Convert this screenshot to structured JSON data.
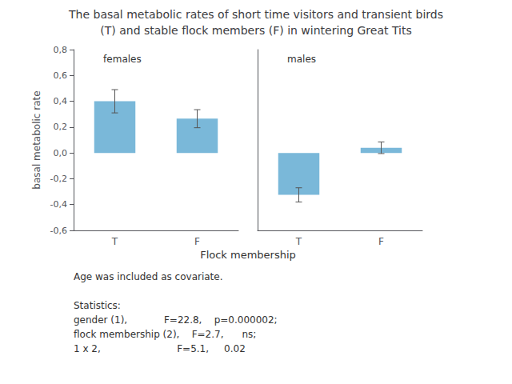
{
  "title": "The basal metabolic rates of short time visitors and transient birds",
  "subtitle": "(T) and stable flock members (F) in wintering Great Tits",
  "xlabel": "Flock membership",
  "annotations": [
    "Age was included as covariate.",
    "Statistics:",
    "gender (1),            F=22.8,    p=0.000002;",
    "flock membership (2),    F=2.7,      ns;",
    "1 x 2,                         F=5.1,     0.02"
  ],
  "chart_data": [
    {
      "type": "bar",
      "label": "females",
      "ylabel": "basal metabolic rate",
      "categories": [
        "T",
        "F"
      ],
      "values": [
        0.4,
        0.265
      ],
      "yerr": [
        0.09,
        0.07
      ],
      "color": "#7ab8d9",
      "ylim": [
        -0.6,
        0.8
      ],
      "yticks": [
        {
          "value": -0.6,
          "label": "-0,6"
        },
        {
          "value": -0.4,
          "label": "-0,4"
        },
        {
          "value": -0.2,
          "label": "-0,2"
        },
        {
          "value": 0.0,
          "label": "0,0"
        },
        {
          "value": 0.2,
          "label": "0,2"
        },
        {
          "value": 0.4,
          "label": "0,4"
        },
        {
          "value": 0.6,
          "label": "0,6"
        },
        {
          "value": 0.8,
          "label": "0,8"
        }
      ],
      "grid": false
    },
    {
      "type": "bar",
      "label": "males",
      "categories": [
        "T",
        "F"
      ],
      "values": [
        -0.325,
        0.04
      ],
      "yerr": [
        0.055,
        0.045
      ],
      "color": "#7ab8d9",
      "ylim": [
        -0.6,
        0.8
      ],
      "yticks": [
        {
          "value": -0.6,
          "label": "-0,6"
        },
        {
          "value": -0.4,
          "label": "-0,4"
        },
        {
          "value": -0.2,
          "label": "-0,2"
        },
        {
          "value": 0.0,
          "label": "0,0"
        },
        {
          "value": 0.2,
          "label": "0,2"
        },
        {
          "value": 0.4,
          "label": "0,4"
        },
        {
          "value": 0.6,
          "label": "0,6"
        },
        {
          "value": 0.8,
          "label": "0,8"
        }
      ],
      "grid": false,
      "tick_labels": "x"
    }
  ]
}
